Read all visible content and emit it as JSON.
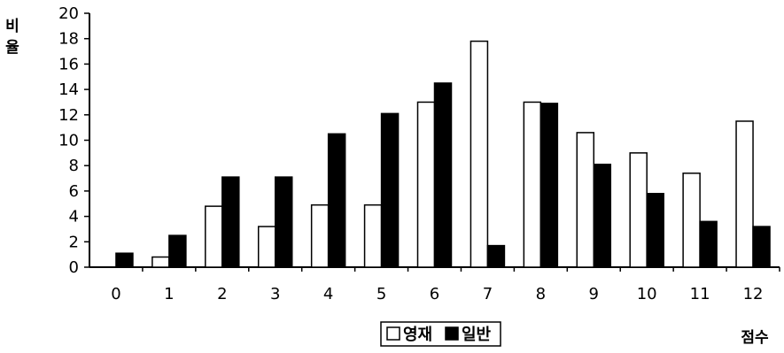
{
  "chart_data": {
    "type": "bar",
    "categories": [
      "0",
      "1",
      "2",
      "3",
      "4",
      "5",
      "6",
      "7",
      "8",
      "9",
      "10",
      "11",
      "12"
    ],
    "series": [
      {
        "name": "영재",
        "values": [
          0,
          0.8,
          4.8,
          3.2,
          4.9,
          4.9,
          13.0,
          17.8,
          13.0,
          10.6,
          9.0,
          7.4,
          11.5
        ],
        "fill": "#ffffff"
      },
      {
        "name": "일반",
        "values": [
          1.1,
          2.5,
          7.1,
          7.1,
          10.5,
          12.1,
          14.5,
          1.7,
          12.9,
          8.1,
          5.8,
          3.6,
          3.2
        ],
        "fill": "#000000"
      }
    ],
    "y_ticks": [
      0,
      2,
      4,
      6,
      8,
      10,
      12,
      14,
      16,
      18,
      20
    ],
    "ylim": [
      0,
      20
    ],
    "ylabel": "비율",
    "xlabel": "점수",
    "legend_position": "bottom-center",
    "grid": false
  }
}
